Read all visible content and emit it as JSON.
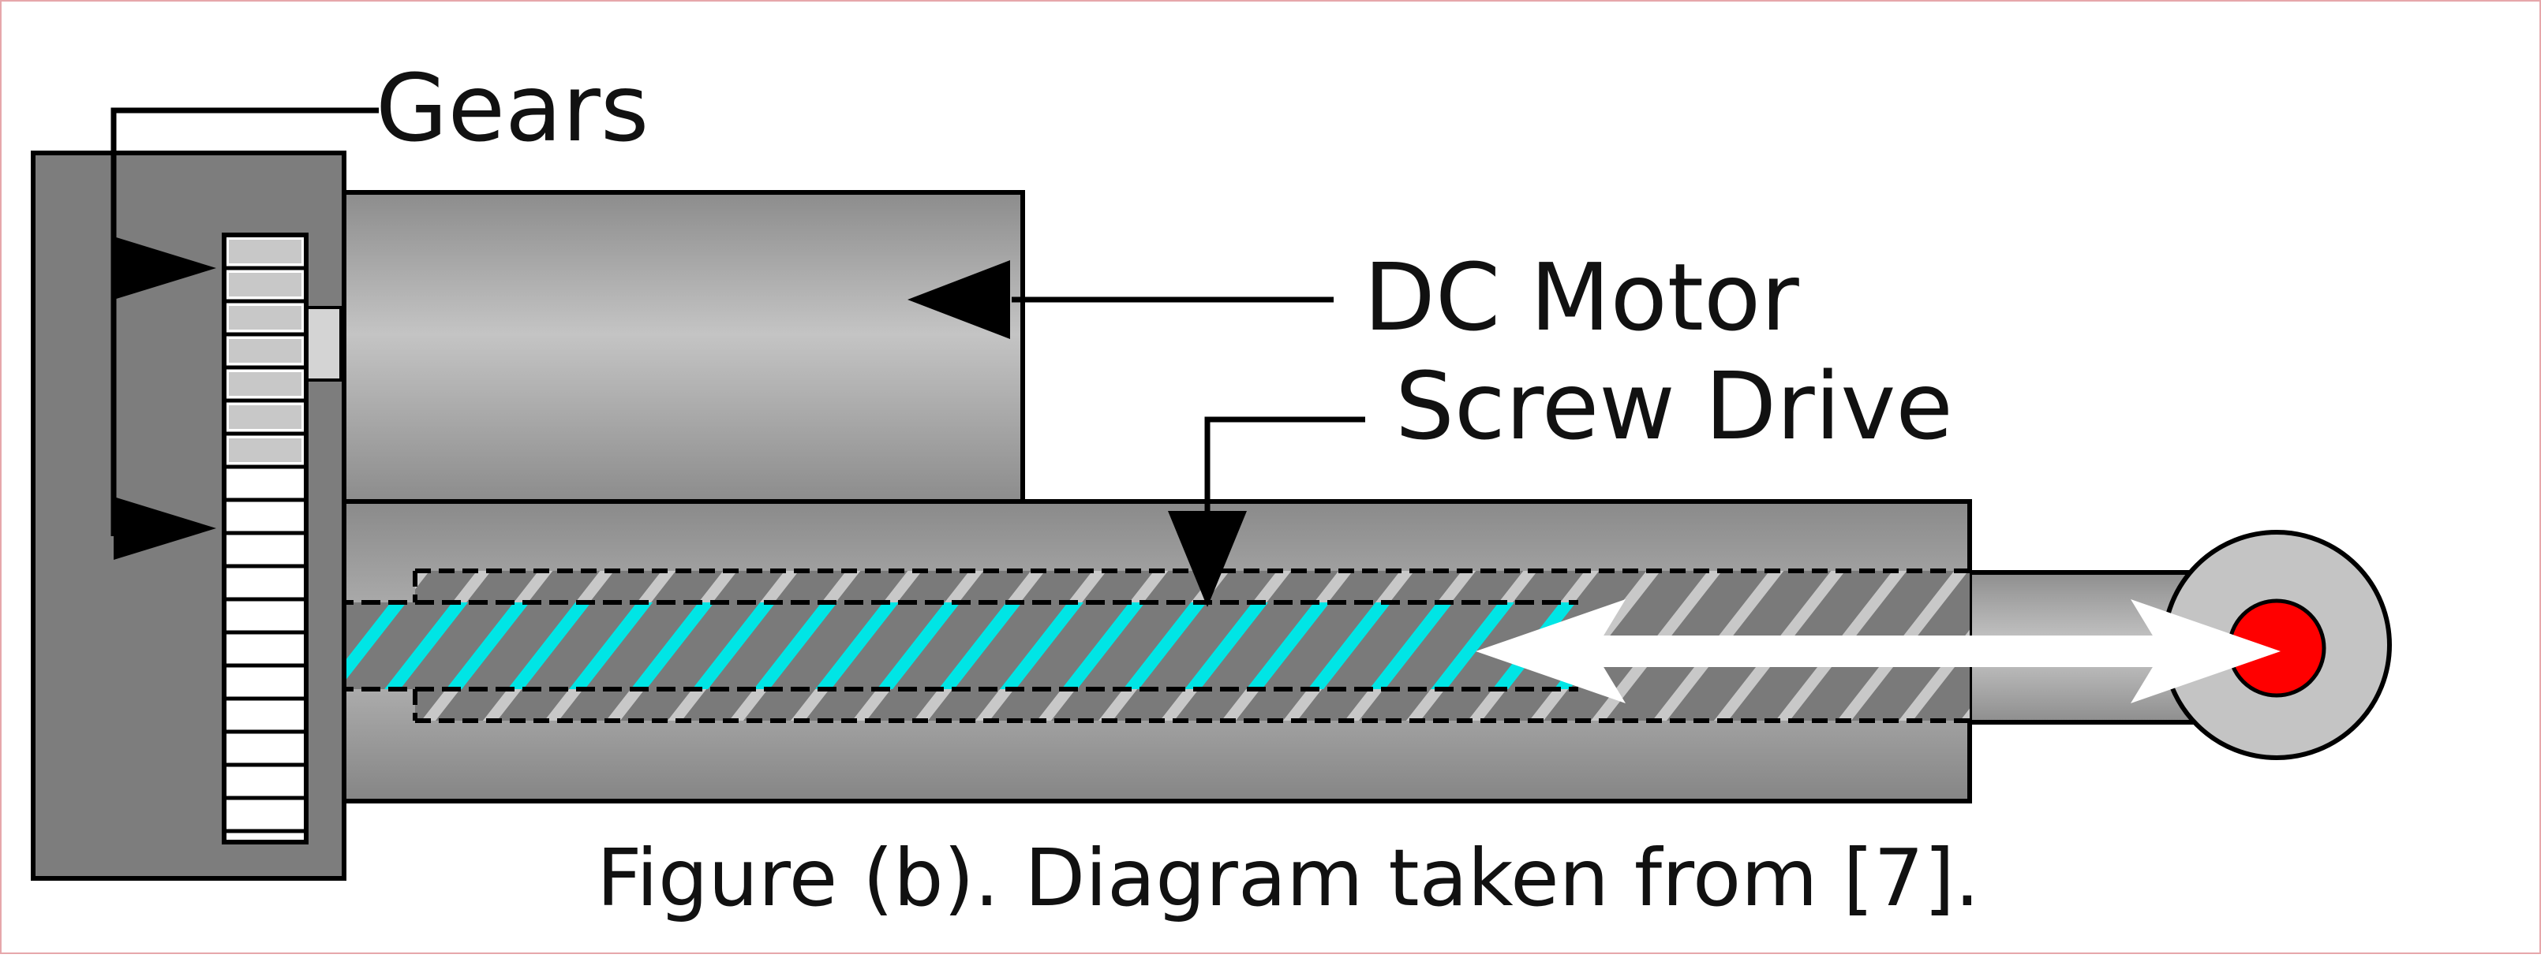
{
  "diagram": {
    "labels": {
      "gears": "Gears",
      "dc_motor": "DC Motor",
      "screw_drive": "Screw Drive"
    },
    "caption": "Figure (b). Diagram taken from [7].",
    "colors": {
      "housing": "#808080",
      "motor_body": "#a8a8a8",
      "screw_thread": "#00e5e5",
      "rod_end": "#ff0000",
      "arrow": "#ffffff",
      "outline": "#000000",
      "border": "#e6a7ab"
    }
  }
}
